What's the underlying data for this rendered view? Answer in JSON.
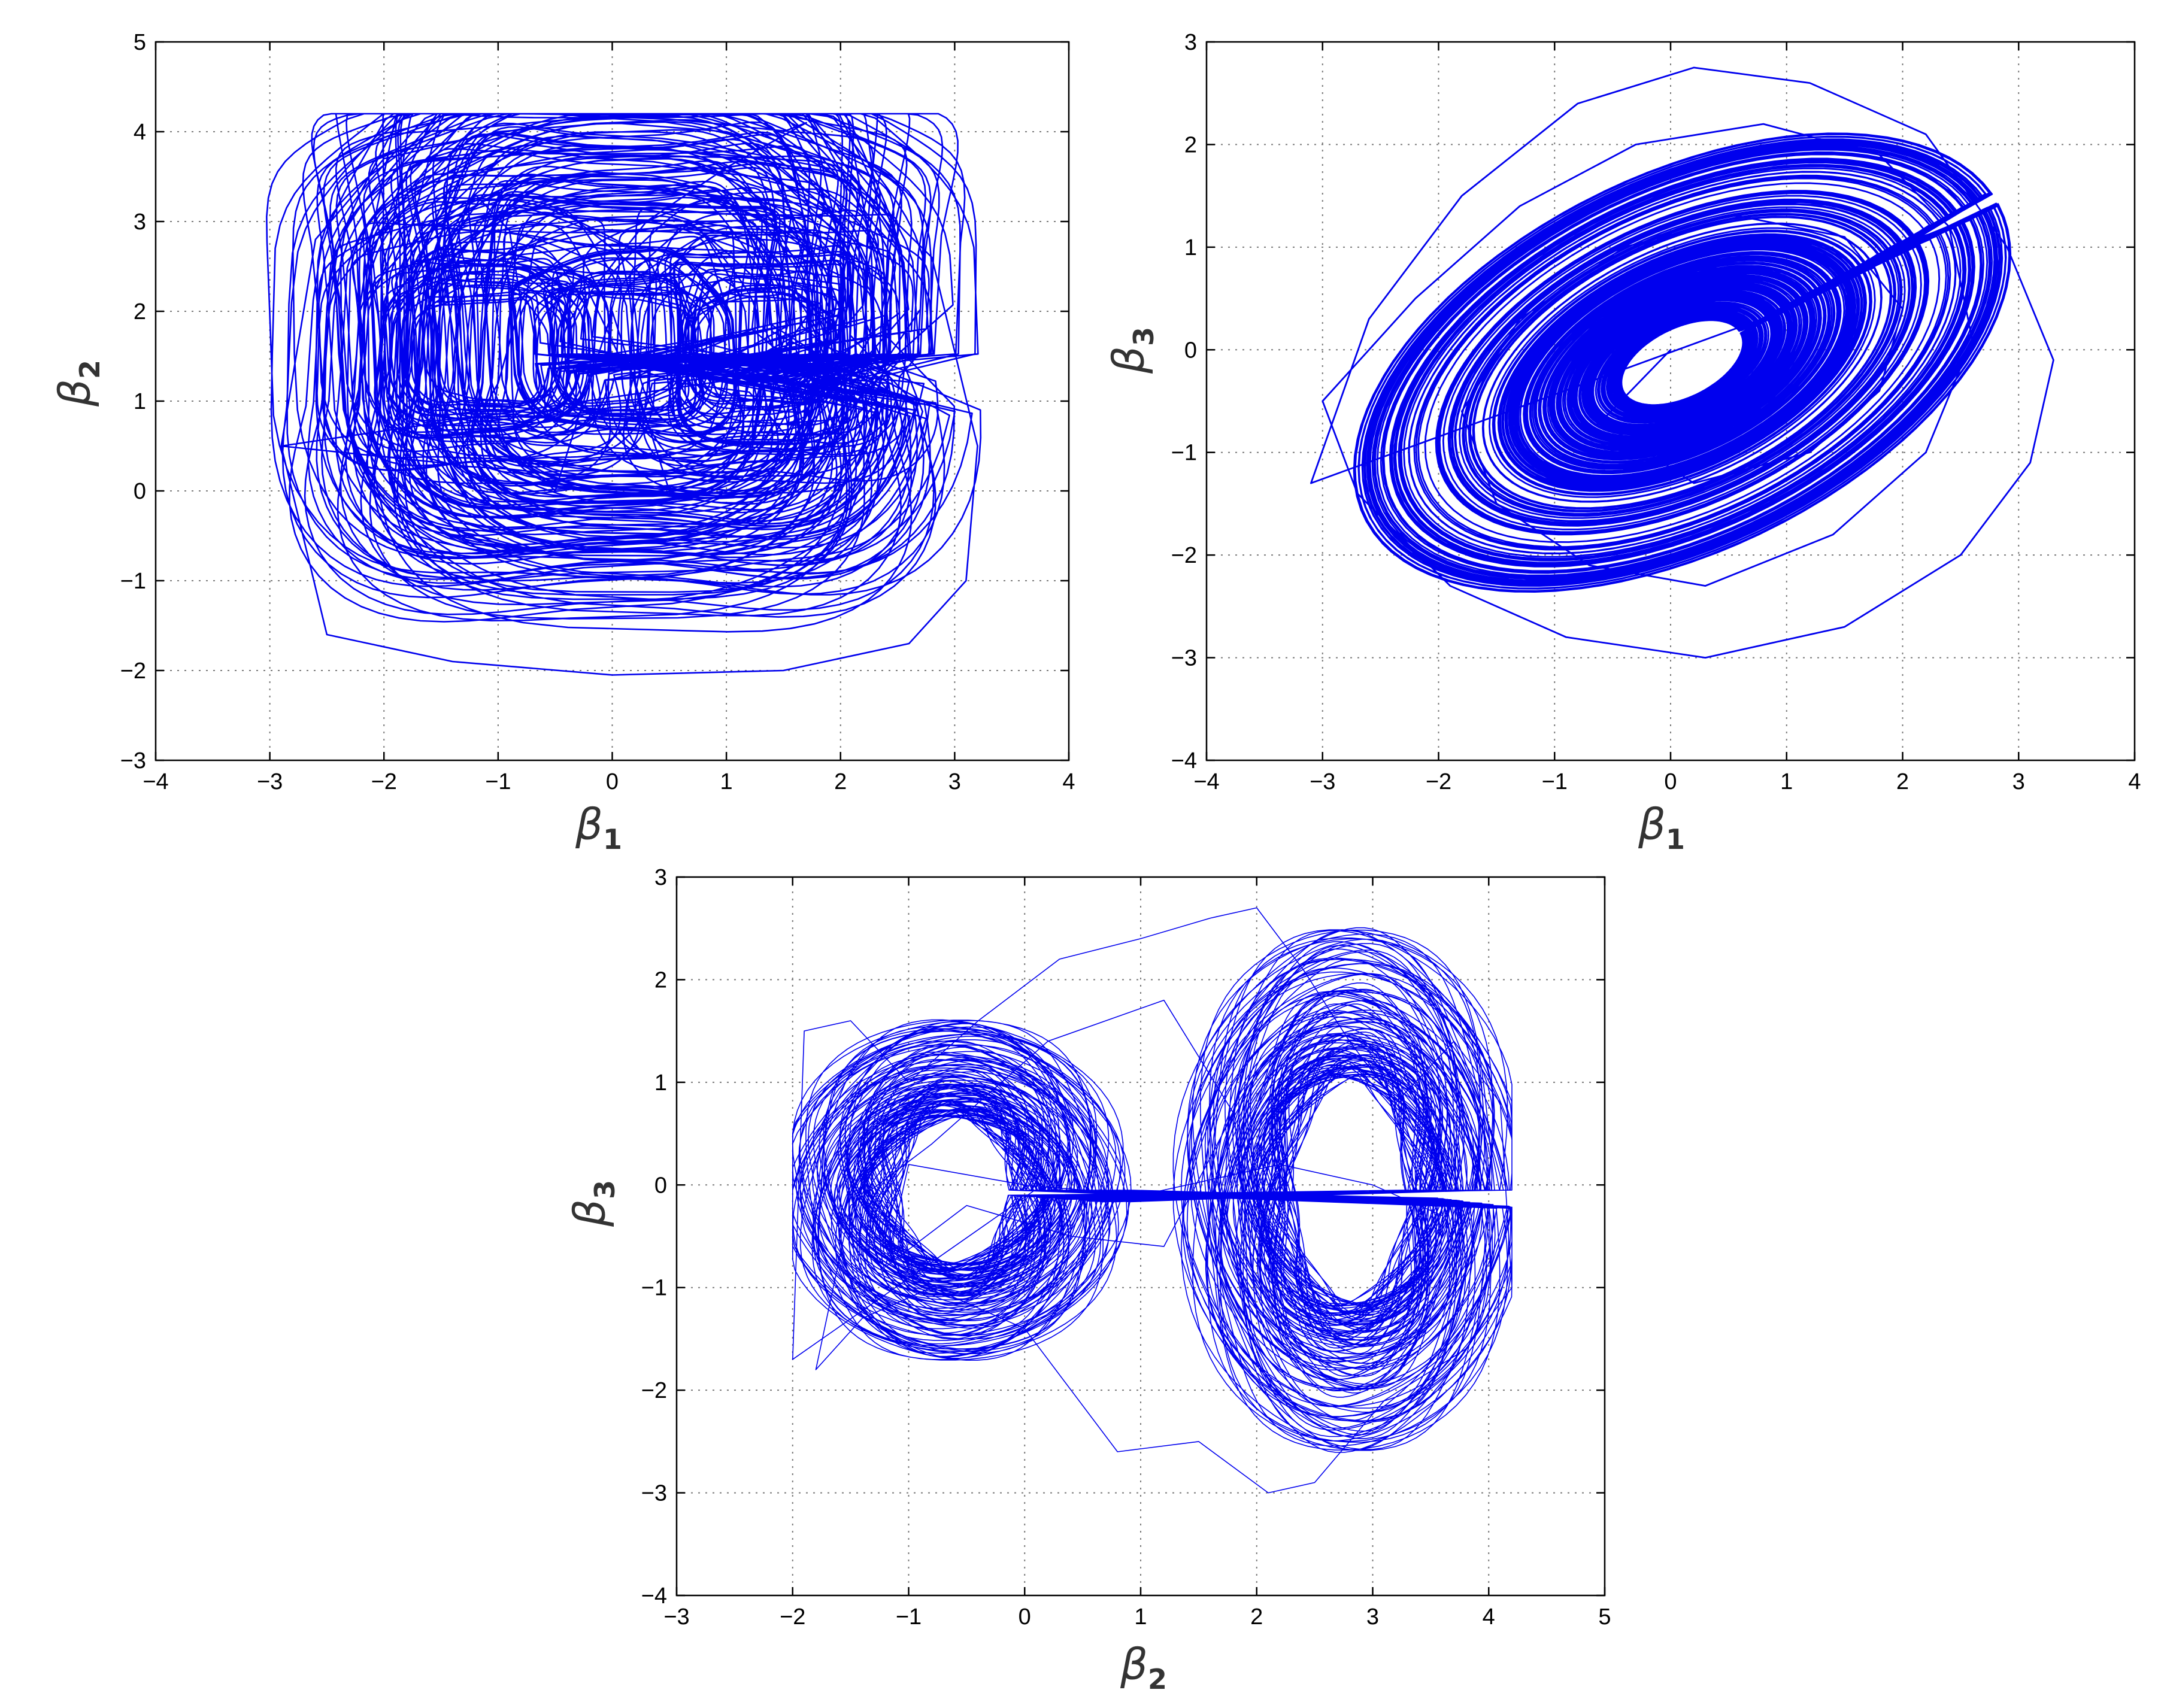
{
  "figure": {
    "panels": [
      {
        "id": "b1-b2",
        "xlabel": {
          "symbol": "β",
          "sub": "1"
        },
        "ylabel": {
          "symbol": "β",
          "sub": "2"
        }
      },
      {
        "id": "b1-b3",
        "xlabel": {
          "symbol": "β",
          "sub": "1"
        },
        "ylabel": {
          "symbol": "β",
          "sub": "3"
        }
      },
      {
        "id": "b2-b3",
        "xlabel": {
          "symbol": "β",
          "sub": "2"
        },
        "ylabel": {
          "symbol": "β",
          "sub": "3"
        }
      }
    ]
  },
  "chart_data": [
    {
      "type": "line",
      "title": "",
      "xlabel": "β1",
      "ylabel": "β2",
      "xlim": [
        -4,
        4
      ],
      "ylim": [
        -3,
        5
      ],
      "xticks": [
        "−4",
        "−3",
        "−2",
        "−1",
        "0",
        "1",
        "2",
        "3",
        "4"
      ],
      "yticks": [
        "−3",
        "−2",
        "−1",
        "0",
        "1",
        "2",
        "3",
        "4",
        "5"
      ],
      "grid": true,
      "color": "#0000ee",
      "series": [
        {
          "points_range": {
            "x": [
              -3.1,
              3.3
            ],
            "y": [
              -2.05,
              4.2
            ]
          },
          "x": [
            -2.9,
            -2.6,
            -2.0,
            -1.0,
            0.0,
            1.0,
            2.0,
            2.8,
            3.2,
            3.1,
            2.6,
            1.5,
            0.0,
            -1.4,
            -2.5,
            -2.9,
            -1.4,
            -1.0,
            -0.8,
            -0.9,
            -1.2,
            -1.5,
            -1.3,
            -0.5,
            0.0,
            0.5,
            1.3,
            1.6,
            1.2,
            0.6,
            0.1,
            -0.2,
            0.3,
            1.0,
            1.7,
            1.5
          ],
          "y": [
            0.5,
            2.8,
            3.7,
            4.0,
            4.1,
            4.0,
            3.6,
            2.6,
            0.5,
            -1.0,
            -1.7,
            -2.0,
            -2.05,
            -1.9,
            -1.6,
            0.5,
            0.3,
            1.2,
            2.1,
            2.9,
            3.3,
            2.6,
            1.0,
            0.0,
            2.0,
            0.0,
            0.2,
            0.5,
            1.1,
            1.2,
            1.4,
            2.2,
            3.0,
            3.6,
            4.1,
            4.0
          ]
        }
      ]
    },
    {
      "type": "line",
      "title": "",
      "xlabel": "β1",
      "ylabel": "β3",
      "xlim": [
        -4,
        4
      ],
      "ylim": [
        -4,
        3
      ],
      "xticks": [
        "−4",
        "−3",
        "−2",
        "−1",
        "0",
        "1",
        "2",
        "3",
        "4"
      ],
      "yticks": [
        "−4",
        "−3",
        "−2",
        "−1",
        "0",
        "1",
        "2",
        "3"
      ],
      "grid": true,
      "color": "#0000ee",
      "series": [
        {
          "points_range": {
            "x": [
              -3.1,
              3.3
            ],
            "y": [
              -3.0,
              2.75
            ]
          },
          "x": [
            -3.1,
            -2.6,
            -1.8,
            -0.8,
            0.2,
            1.2,
            2.2,
            2.9,
            3.3,
            3.1,
            2.5,
            1.5,
            0.3,
            -0.9,
            -1.9,
            -2.7,
            -3.0,
            -2.2,
            -1.3,
            -0.3,
            0.8,
            1.8,
            2.4,
            2.6,
            2.2,
            1.4,
            0.3,
            -0.7,
            -1.5,
            -1.8,
            -1.3,
            -0.4,
            0.6,
            1.5,
            2.0,
            1.8,
            1.2,
            0.2,
            -0.6,
            0.0
          ],
          "y": [
            -1.3,
            0.3,
            1.5,
            2.4,
            2.75,
            2.6,
            2.1,
            1.0,
            -0.1,
            -1.1,
            -2.0,
            -2.7,
            -3.0,
            -2.8,
            -2.3,
            -1.4,
            -0.5,
            0.5,
            1.4,
            2.0,
            2.2,
            1.9,
            1.2,
            0.1,
            -1.0,
            -1.8,
            -2.3,
            -2.1,
            -1.5,
            -0.6,
            0.3,
            1.0,
            1.3,
            1.1,
            0.4,
            -0.4,
            -1.0,
            -1.3,
            -0.7,
            0.0
          ]
        }
      ]
    },
    {
      "type": "line",
      "title": "",
      "xlabel": "β2",
      "ylabel": "β3",
      "xlim": [
        -3,
        5
      ],
      "ylim": [
        -4,
        3
      ],
      "xticks": [
        "−3",
        "−2",
        "−1",
        "0",
        "1",
        "2",
        "3",
        "4",
        "5"
      ],
      "yticks": [
        "−4",
        "−3",
        "−2",
        "−1",
        "0",
        "1",
        "2",
        "3"
      ],
      "grid": true,
      "color": "#0000ee",
      "series": [
        {
          "points_range": {
            "x": [
              -2.0,
              4.2
            ],
            "y": [
              -3.0,
              2.7
            ]
          },
          "x": [
            -2.0,
            -1.9,
            -1.5,
            -1.0,
            -0.4,
            0.3,
            1.0,
            1.6,
            2.0,
            2.4,
            2.8,
            3.2,
            3.7,
            4.1,
            4.2,
            3.8,
            3.1,
            2.5,
            2.1,
            1.5,
            0.8,
            0.0,
            -0.8,
            -1.4,
            -1.8,
            -1.5,
            -0.8,
            0.2,
            1.2,
            1.8,
            1.2,
            0.4,
            -0.5,
            -1.2,
            -1.0,
            0.0,
            1.0,
            2.2,
            3.0,
            3.6
          ],
          "y": [
            -1.7,
            1.5,
            1.6,
            1.0,
            1.6,
            2.2,
            2.4,
            2.6,
            2.7,
            2.1,
            1.4,
            0.8,
            1.4,
            0.8,
            -1.0,
            -1.6,
            -2.1,
            -2.9,
            -3.0,
            -2.5,
            -2.6,
            -1.4,
            -1.0,
            -1.3,
            -1.8,
            -0.2,
            0.4,
            1.4,
            1.8,
            0.7,
            -0.6,
            -0.5,
            -0.2,
            -0.8,
            0.2,
            0.0,
            -0.1,
            0.2,
            0.0,
            -0.3
          ]
        }
      ]
    }
  ]
}
